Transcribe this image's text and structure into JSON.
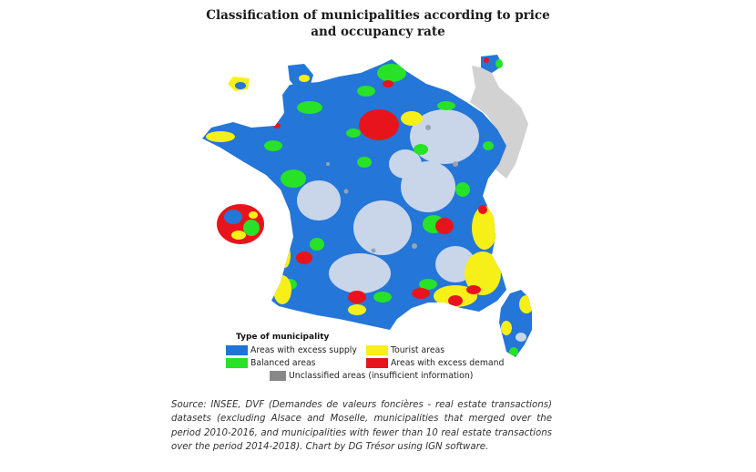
{
  "title": "Classification of municipalities according to price and occupancy rate",
  "legend": {
    "title": "Type of municipality",
    "items": [
      {
        "label": "Areas with excess supply",
        "color": "#1f74d6"
      },
      {
        "label": "Tourist areas",
        "color": "#f6ef18"
      },
      {
        "label": "Balanced areas",
        "color": "#27e227"
      },
      {
        "label": "Areas with excess demand",
        "color": "#e8141c"
      },
      {
        "label": "Unclassified areas (insufficient information)",
        "color": "#888888"
      }
    ]
  },
  "colors": {
    "excess_supply": "#1f74d6",
    "balanced": "#27e227",
    "tourist": "#f6ef18",
    "excess_demand": "#e8141c",
    "unclassified": "#888888",
    "outside_scope": "#d2d2d2",
    "dispersed_supply_area": "#c9d6ea"
  },
  "source": "Source: INSEE, DVF (Demandes de valeurs foncières - real estate transactions) datasets (excluding Alsace and Moselle, municipalities that merged over the period 2010-2016, and municipalities with fewer than 10 real estate transactions over the period 2014-2018). Chart by DG Trésor using IGN software."
}
